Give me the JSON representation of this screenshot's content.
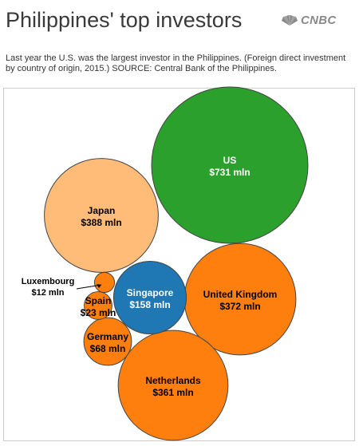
{
  "header": {
    "title": "Philippines' top investors",
    "logo_text": "CNBC",
    "subtitle": "Last year the U.S. was the largest investor in the Philippines. (Foreign direct investment by country of origin, 2015.) SOURCE: Central Bank of the Philippines."
  },
  "chart_data": {
    "type": "bubble",
    "unit": "mln",
    "bubbles": [
      {
        "name": "US",
        "value": 731,
        "label": "$731 mln",
        "color": "#2ca02c",
        "text_color": "#ffffff"
      },
      {
        "name": "Japan",
        "value": 388,
        "label": "$388 mln",
        "color": "#ffbb78",
        "text_color": "#000000"
      },
      {
        "name": "United Kingdom",
        "value": 372,
        "label": "$372 mln",
        "color": "#ff7f0e",
        "text_color": "#000000"
      },
      {
        "name": "Netherlands",
        "value": 361,
        "label": "$361 mln",
        "color": "#ff7f0e",
        "text_color": "#000000"
      },
      {
        "name": "Singapore",
        "value": 158,
        "label": "$158 mln",
        "color": "#1f77b4",
        "text_color": "#ffffff"
      },
      {
        "name": "Germany",
        "value": 68,
        "label": "$68 mln",
        "color": "#ff7f0e",
        "text_color": "#000000"
      },
      {
        "name": "Spain",
        "value": 23,
        "label": "$23 mln",
        "color": "#ff7f0e",
        "text_color": "#000000"
      },
      {
        "name": "Luxembourg",
        "value": 12,
        "label": "$12 mln",
        "color": "#ff7f0e",
        "text_color": "#000000"
      }
    ]
  }
}
